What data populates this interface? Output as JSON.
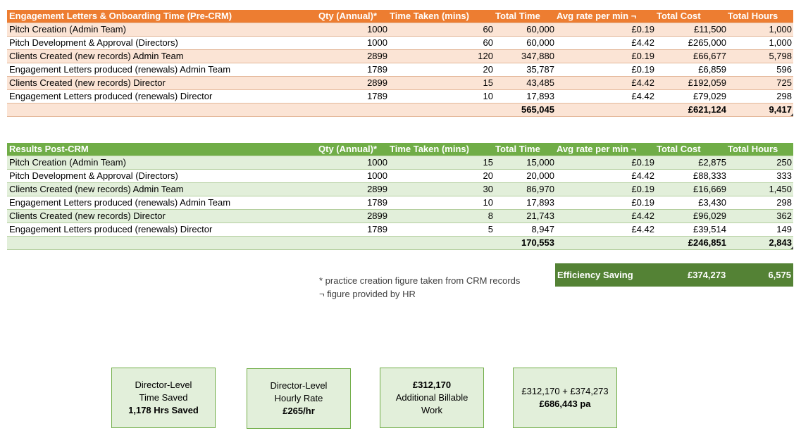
{
  "pre": {
    "headers": [
      "Engagement Letters & Onboarding Time (Pre-CRM)",
      "Qty (Annual)*",
      "Time Taken (mins)",
      "Total Time",
      "Avg rate per min ¬",
      "Total Cost",
      "Total Hours"
    ],
    "rows": [
      [
        "Pitch Creation (Admin Team)",
        "1000",
        "60",
        "60,000",
        "£0.19",
        "£11,500",
        "1,000"
      ],
      [
        "Pitch Development & Approval (Directors)",
        "1000",
        "60",
        "60,000",
        "£4.42",
        "£265,000",
        "1,000"
      ],
      [
        "Clients Created (new records) Admin Team",
        "2899",
        "120",
        "347,880",
        "£0.19",
        "£66,677",
        "5,798"
      ],
      [
        "Engagement Letters produced (renewals)  Admin Team",
        "1789",
        "20",
        "35,787",
        "£0.19",
        "£6,859",
        "596"
      ],
      [
        "Clients Created (new records) Director",
        "2899",
        "15",
        "43,485",
        "£4.42",
        "£192,059",
        "725"
      ],
      [
        "Engagement Letters produced (renewals)  Director",
        "1789",
        "10",
        "17,893",
        "£4.42",
        "£79,029",
        "298"
      ]
    ],
    "totals": {
      "time": "565,045",
      "cost": "£621,124",
      "hours": "9,417"
    }
  },
  "post": {
    "headers": [
      "Results Post-CRM",
      "Qty (Annual)*",
      "Time Taken (mins)",
      "Total Time",
      "Avg rate per min ¬",
      "Total Cost",
      "Total Hours"
    ],
    "rows": [
      [
        "Pitch Creation (Admin Team)",
        "1000",
        "15",
        "15,000",
        "£0.19",
        "£2,875",
        "250"
      ],
      [
        "Pitch Development & Approval (Directors)",
        "1000",
        "20",
        "20,000",
        "£4.42",
        "£88,333",
        "333"
      ],
      [
        "Clients Created (new records) Admin Team",
        "2899",
        "30",
        "86,970",
        "£0.19",
        "£16,669",
        "1,450"
      ],
      [
        "Engagement Letters produced (renewals)  Admin Team",
        "1789",
        "10",
        "17,893",
        "£0.19",
        "£3,430",
        "298"
      ],
      [
        "Clients Created (new records) Director",
        "2899",
        "8",
        "21,743",
        "£4.42",
        "£96,029",
        "362"
      ],
      [
        "Engagement Letters produced (renewals)  Director",
        "1789",
        "5",
        "8,947",
        "£4.42",
        "£39,514",
        "149"
      ]
    ],
    "totals": {
      "time": "170,553",
      "cost": "£246,851",
      "hours": "2,843"
    }
  },
  "efficiency": {
    "label": "Efficiency Saving",
    "cost": "£374,273",
    "hours": "6,575"
  },
  "notes": [
    "* practice creation figure taken from CRM records",
    "¬ figure provided by HR"
  ],
  "boxes": [
    {
      "line1": "Director-Level",
      "line2": "Time Saved",
      "line3": "1,178 Hrs Saved"
    },
    {
      "line1": "Director-Level",
      "line2": "Hourly Rate",
      "line3": "£265/hr"
    },
    {
      "line1": "£312,170",
      "line2": "Additional Billable",
      "line3": "Work"
    },
    {
      "line1": "£312,170 + £374,273",
      "line2": "£686,443 pa"
    }
  ],
  "colors": {
    "orange_header": "#ed7d31",
    "orange_band": "#fbe4d5",
    "green_header": "#70ad47",
    "green_band": "#e2efda",
    "green_dark": "#548235"
  }
}
